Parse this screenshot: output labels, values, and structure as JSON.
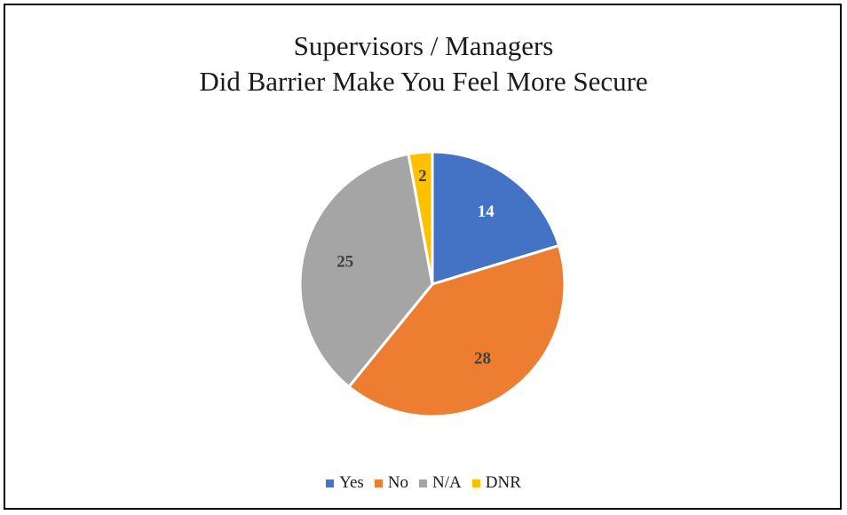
{
  "chart_data": {
    "type": "pie",
    "title_lines": [
      "Supervisors / Managers",
      "Did Barrier Make You Feel More Secure"
    ],
    "categories": [
      "Yes",
      "No",
      "N/A",
      "DNR"
    ],
    "values": [
      14,
      28,
      25,
      2
    ],
    "colors": [
      "#4472C4",
      "#ED7D31",
      "#A5A5A5",
      "#FFC000"
    ],
    "label_colors": [
      "#ffffff",
      "#404040",
      "#404040",
      "#404040"
    ],
    "legend_position": "bottom",
    "start_angle_deg": 0,
    "direction": "clockwise"
  }
}
